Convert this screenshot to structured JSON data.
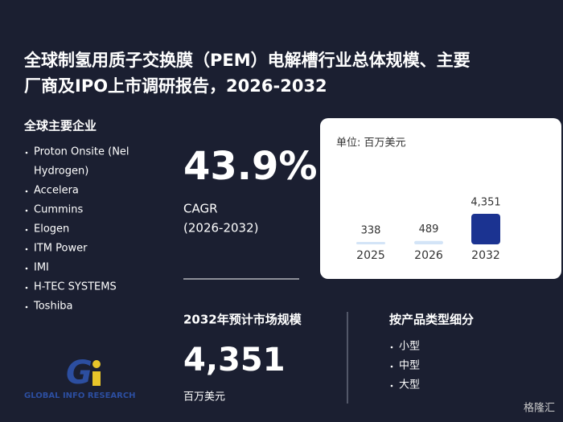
{
  "title_lines": [
    "全球制氢用质子交换膜（PEM）电解槽行业总体规模、主要",
    "厂商及IPO上市调研报告，2026-2032"
  ],
  "companies_heading": "全球主要企业",
  "companies": [
    "Proton Onsite (Nel",
    "Hydrogen)",
    "Accelera",
    "Cummins",
    "Elogen",
    "ITM Power",
    "IMI",
    "H-TEC SYSTEMS",
    "Toshiba"
  ],
  "cagr": {
    "value": "43.9%",
    "label": "CAGR",
    "period": "(2026-2032)"
  },
  "market": {
    "heading": "2032年预计市场规模",
    "value": "4,351",
    "unit": "百万美元"
  },
  "segments": {
    "heading": "按产品类型细分",
    "items": [
      "小型",
      "中型",
      "大型"
    ]
  },
  "logo_text": "GLOBAL INFO RESEARCH",
  "source_mark": "格隆汇",
  "chart_data": {
    "type": "bar",
    "unit_label": "单位: 百万美元",
    "categories": [
      "2025",
      "2026",
      "2032"
    ],
    "values": [
      338,
      489,
      4351
    ],
    "value_labels": [
      "338",
      "489",
      "4,351"
    ],
    "colors": [
      "#d3e4f7",
      "#d3e4f7",
      "#1b3391"
    ]
  }
}
